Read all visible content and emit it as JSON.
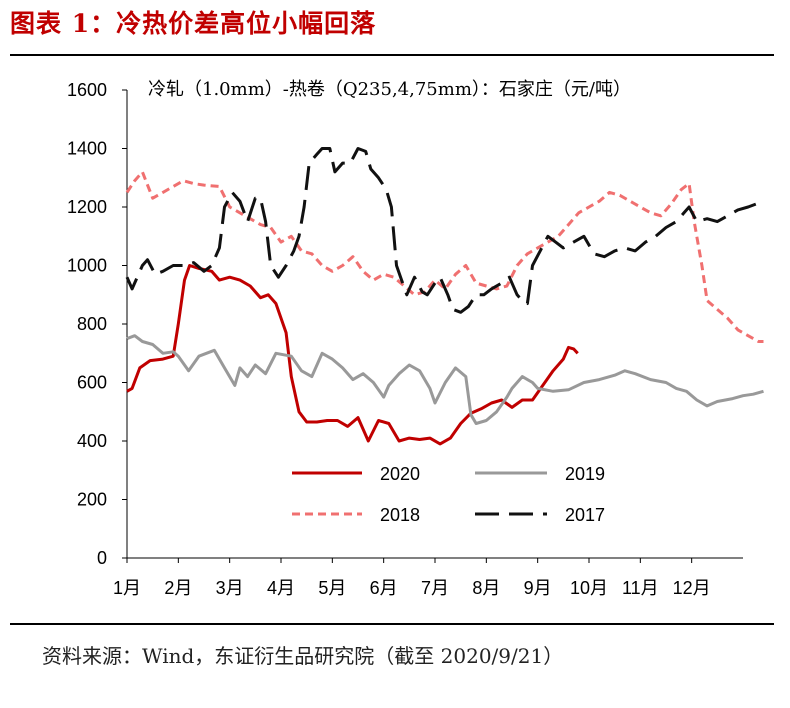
{
  "figure": {
    "title": "图表 1：冷热价差高位小幅回落",
    "source": "资料来源：Wind，东证衍生品研究院（截至 2020/9/21）"
  },
  "chart_data": {
    "type": "line",
    "subtitle": "冷轧（1.0mm）-热卷（Q235,4,75mm）：石家庄（元/吨）",
    "ylim": [
      0,
      1600
    ],
    "yticks": [
      0,
      200,
      400,
      600,
      800,
      1000,
      1200,
      1400,
      1600
    ],
    "xlim": [
      1,
      13
    ],
    "xticks": [
      1,
      2,
      3,
      4,
      5,
      6,
      7,
      8,
      9,
      10,
      11,
      12
    ],
    "xtick_labels": [
      "1月",
      "2月",
      "3月",
      "4月",
      "5月",
      "6月",
      "7月",
      "8月",
      "9月",
      "10月",
      "11月",
      "12月"
    ],
    "grid": false,
    "legend_position": "lower-center",
    "series": [
      {
        "name": "2020",
        "color": "#c00000",
        "style": "solid",
        "points": [
          [
            1.0,
            570
          ],
          [
            1.1,
            580
          ],
          [
            1.25,
            650
          ],
          [
            1.45,
            675
          ],
          [
            1.7,
            680
          ],
          [
            1.9,
            690
          ],
          [
            2.0,
            800
          ],
          [
            2.12,
            950
          ],
          [
            2.22,
            1000
          ],
          [
            2.4,
            990
          ],
          [
            2.65,
            980
          ],
          [
            2.8,
            950
          ],
          [
            3.0,
            960
          ],
          [
            3.2,
            950
          ],
          [
            3.4,
            930
          ],
          [
            3.6,
            890
          ],
          [
            3.75,
            900
          ],
          [
            3.9,
            870
          ],
          [
            4.1,
            770
          ],
          [
            4.2,
            620
          ],
          [
            4.35,
            500
          ],
          [
            4.5,
            465
          ],
          [
            4.7,
            465
          ],
          [
            4.9,
            470
          ],
          [
            5.1,
            470
          ],
          [
            5.3,
            450
          ],
          [
            5.5,
            480
          ],
          [
            5.7,
            400
          ],
          [
            5.9,
            470
          ],
          [
            6.1,
            460
          ],
          [
            6.3,
            400
          ],
          [
            6.5,
            410
          ],
          [
            6.7,
            405
          ],
          [
            6.9,
            410
          ],
          [
            7.1,
            390
          ],
          [
            7.3,
            410
          ],
          [
            7.5,
            460
          ],
          [
            7.7,
            495
          ],
          [
            7.9,
            510
          ],
          [
            8.1,
            530
          ],
          [
            8.3,
            540
          ],
          [
            8.5,
            515
          ],
          [
            8.7,
            540
          ],
          [
            8.9,
            540
          ],
          [
            9.1,
            590
          ],
          [
            9.3,
            640
          ],
          [
            9.5,
            680
          ],
          [
            9.6,
            720
          ],
          [
            9.7,
            715
          ],
          [
            9.78,
            700
          ]
        ]
      },
      {
        "name": "2019",
        "color": "#999999",
        "style": "solid",
        "points": [
          [
            1.0,
            750
          ],
          [
            1.15,
            760
          ],
          [
            1.3,
            740
          ],
          [
            1.5,
            730
          ],
          [
            1.7,
            700
          ],
          [
            1.9,
            705
          ],
          [
            2.0,
            690
          ],
          [
            2.2,
            640
          ],
          [
            2.4,
            690
          ],
          [
            2.7,
            710
          ],
          [
            2.9,
            650
          ],
          [
            3.1,
            590
          ],
          [
            3.2,
            650
          ],
          [
            3.35,
            620
          ],
          [
            3.5,
            660
          ],
          [
            3.7,
            630
          ],
          [
            3.9,
            700
          ],
          [
            4.2,
            690
          ],
          [
            4.4,
            640
          ],
          [
            4.6,
            620
          ],
          [
            4.8,
            700
          ],
          [
            5.0,
            680
          ],
          [
            5.2,
            650
          ],
          [
            5.4,
            610
          ],
          [
            5.6,
            630
          ],
          [
            5.8,
            600
          ],
          [
            6.0,
            550
          ],
          [
            6.1,
            590
          ],
          [
            6.3,
            630
          ],
          [
            6.5,
            660
          ],
          [
            6.7,
            640
          ],
          [
            6.9,
            580
          ],
          [
            7.0,
            530
          ],
          [
            7.2,
            600
          ],
          [
            7.4,
            650
          ],
          [
            7.6,
            620
          ],
          [
            7.7,
            490
          ],
          [
            7.8,
            460
          ],
          [
            8.0,
            470
          ],
          [
            8.2,
            500
          ],
          [
            8.4,
            550
          ],
          [
            8.5,
            580
          ],
          [
            8.7,
            620
          ],
          [
            8.9,
            600
          ],
          [
            9.0,
            580
          ],
          [
            9.3,
            570
          ],
          [
            9.6,
            575
          ],
          [
            9.9,
            600
          ],
          [
            10.2,
            610
          ],
          [
            10.5,
            625
          ],
          [
            10.7,
            640
          ],
          [
            10.9,
            630
          ],
          [
            11.2,
            610
          ],
          [
            11.5,
            600
          ],
          [
            11.7,
            580
          ],
          [
            11.9,
            570
          ],
          [
            12.1,
            540
          ],
          [
            12.3,
            520
          ],
          [
            12.5,
            535
          ],
          [
            12.8,
            545
          ],
          [
            13.0,
            555
          ],
          [
            13.2,
            560
          ],
          [
            13.4,
            570
          ]
        ]
      },
      {
        "name": "2018",
        "color": "#f07070",
        "style": "dashed",
        "points": [
          [
            1.0,
            1250
          ],
          [
            1.15,
            1290
          ],
          [
            1.3,
            1320
          ],
          [
            1.5,
            1230
          ],
          [
            1.7,
            1250
          ],
          [
            1.9,
            1270
          ],
          [
            2.1,
            1290
          ],
          [
            2.3,
            1280
          ],
          [
            2.5,
            1275
          ],
          [
            2.8,
            1270
          ],
          [
            3.0,
            1200
          ],
          [
            3.2,
            1180
          ],
          [
            3.4,
            1160
          ],
          [
            3.6,
            1140
          ],
          [
            3.8,
            1130
          ],
          [
            4.0,
            1080
          ],
          [
            4.2,
            1100
          ],
          [
            4.4,
            1050
          ],
          [
            4.6,
            1040
          ],
          [
            4.8,
            1000
          ],
          [
            5.0,
            980
          ],
          [
            5.2,
            1000
          ],
          [
            5.4,
            1030
          ],
          [
            5.6,
            980
          ],
          [
            5.8,
            950
          ],
          [
            6.0,
            970
          ],
          [
            6.2,
            960
          ],
          [
            6.4,
            930
          ],
          [
            6.6,
            900
          ],
          [
            6.8,
            910
          ],
          [
            7.0,
            950
          ],
          [
            7.2,
            920
          ],
          [
            7.4,
            970
          ],
          [
            7.6,
            1000
          ],
          [
            7.8,
            940
          ],
          [
            8.0,
            930
          ],
          [
            8.2,
            920
          ],
          [
            8.4,
            930
          ],
          [
            8.6,
            1000
          ],
          [
            8.8,
            1040
          ],
          [
            9.0,
            1060
          ],
          [
            9.2,
            1080
          ],
          [
            9.4,
            1100
          ],
          [
            9.6,
            1140
          ],
          [
            9.8,
            1180
          ],
          [
            10.0,
            1200
          ],
          [
            10.2,
            1220
          ],
          [
            10.4,
            1250
          ],
          [
            10.6,
            1240
          ],
          [
            10.8,
            1220
          ],
          [
            11.0,
            1200
          ],
          [
            11.2,
            1180
          ],
          [
            11.4,
            1170
          ],
          [
            11.6,
            1210
          ],
          [
            11.8,
            1260
          ],
          [
            11.95,
            1280
          ],
          [
            12.05,
            1150
          ],
          [
            12.2,
            1000
          ],
          [
            12.3,
            880
          ],
          [
            12.5,
            850
          ],
          [
            12.7,
            820
          ],
          [
            12.9,
            780
          ],
          [
            13.1,
            760
          ],
          [
            13.3,
            740
          ],
          [
            13.4,
            740
          ]
        ]
      },
      {
        "name": "2017",
        "color": "#111111",
        "style": "longdash",
        "points": [
          [
            1.0,
            960
          ],
          [
            1.1,
            920
          ],
          [
            1.3,
            1000
          ],
          [
            1.4,
            1020
          ],
          [
            1.55,
            970
          ],
          [
            1.7,
            980
          ],
          [
            1.9,
            1000
          ],
          [
            2.1,
            1000
          ],
          [
            2.3,
            1010
          ],
          [
            2.5,
            980
          ],
          [
            2.65,
            1000
          ],
          [
            2.8,
            1060
          ],
          [
            2.9,
            1200
          ],
          [
            3.05,
            1250
          ],
          [
            3.2,
            1220
          ],
          [
            3.35,
            1150
          ],
          [
            3.5,
            1230
          ],
          [
            3.6,
            1230
          ],
          [
            3.7,
            1150
          ],
          [
            3.8,
            1000
          ],
          [
            3.95,
            960
          ],
          [
            4.1,
            1000
          ],
          [
            4.25,
            1050
          ],
          [
            4.35,
            1100
          ],
          [
            4.45,
            1200
          ],
          [
            4.55,
            1350
          ],
          [
            4.7,
            1380
          ],
          [
            4.8,
            1400
          ],
          [
            4.95,
            1400
          ],
          [
            5.05,
            1320
          ],
          [
            5.2,
            1350
          ],
          [
            5.35,
            1350
          ],
          [
            5.5,
            1400
          ],
          [
            5.65,
            1390
          ],
          [
            5.75,
            1330
          ],
          [
            5.9,
            1300
          ],
          [
            6.05,
            1260
          ],
          [
            6.15,
            1200
          ],
          [
            6.25,
            1000
          ],
          [
            6.35,
            950
          ],
          [
            6.45,
            900
          ],
          [
            6.6,
            960
          ],
          [
            6.75,
            910
          ],
          [
            6.85,
            900
          ],
          [
            7.0,
            940
          ],
          [
            7.1,
            960
          ],
          [
            7.25,
            900
          ],
          [
            7.35,
            850
          ],
          [
            7.5,
            840
          ],
          [
            7.65,
            860
          ],
          [
            7.8,
            900
          ],
          [
            7.95,
            900
          ],
          [
            8.1,
            920
          ],
          [
            8.3,
            940
          ],
          [
            8.45,
            960
          ],
          [
            8.6,
            900
          ],
          [
            8.7,
            880
          ],
          [
            8.8,
            870
          ],
          [
            8.9,
            1000
          ],
          [
            9.05,
            1050
          ],
          [
            9.2,
            1100
          ],
          [
            9.35,
            1080
          ],
          [
            9.5,
            1060
          ],
          [
            9.7,
            1080
          ],
          [
            9.9,
            1100
          ],
          [
            10.1,
            1040
          ],
          [
            10.3,
            1030
          ],
          [
            10.5,
            1050
          ],
          [
            10.7,
            1060
          ],
          [
            10.9,
            1050
          ],
          [
            11.1,
            1080
          ],
          [
            11.3,
            1100
          ],
          [
            11.5,
            1130
          ],
          [
            11.7,
            1150
          ],
          [
            11.85,
            1180
          ],
          [
            11.95,
            1200
          ],
          [
            12.1,
            1150
          ],
          [
            12.3,
            1160
          ],
          [
            12.5,
            1150
          ],
          [
            12.7,
            1170
          ],
          [
            12.9,
            1190
          ],
          [
            13.1,
            1200
          ],
          [
            13.25,
            1210
          ]
        ]
      }
    ]
  }
}
